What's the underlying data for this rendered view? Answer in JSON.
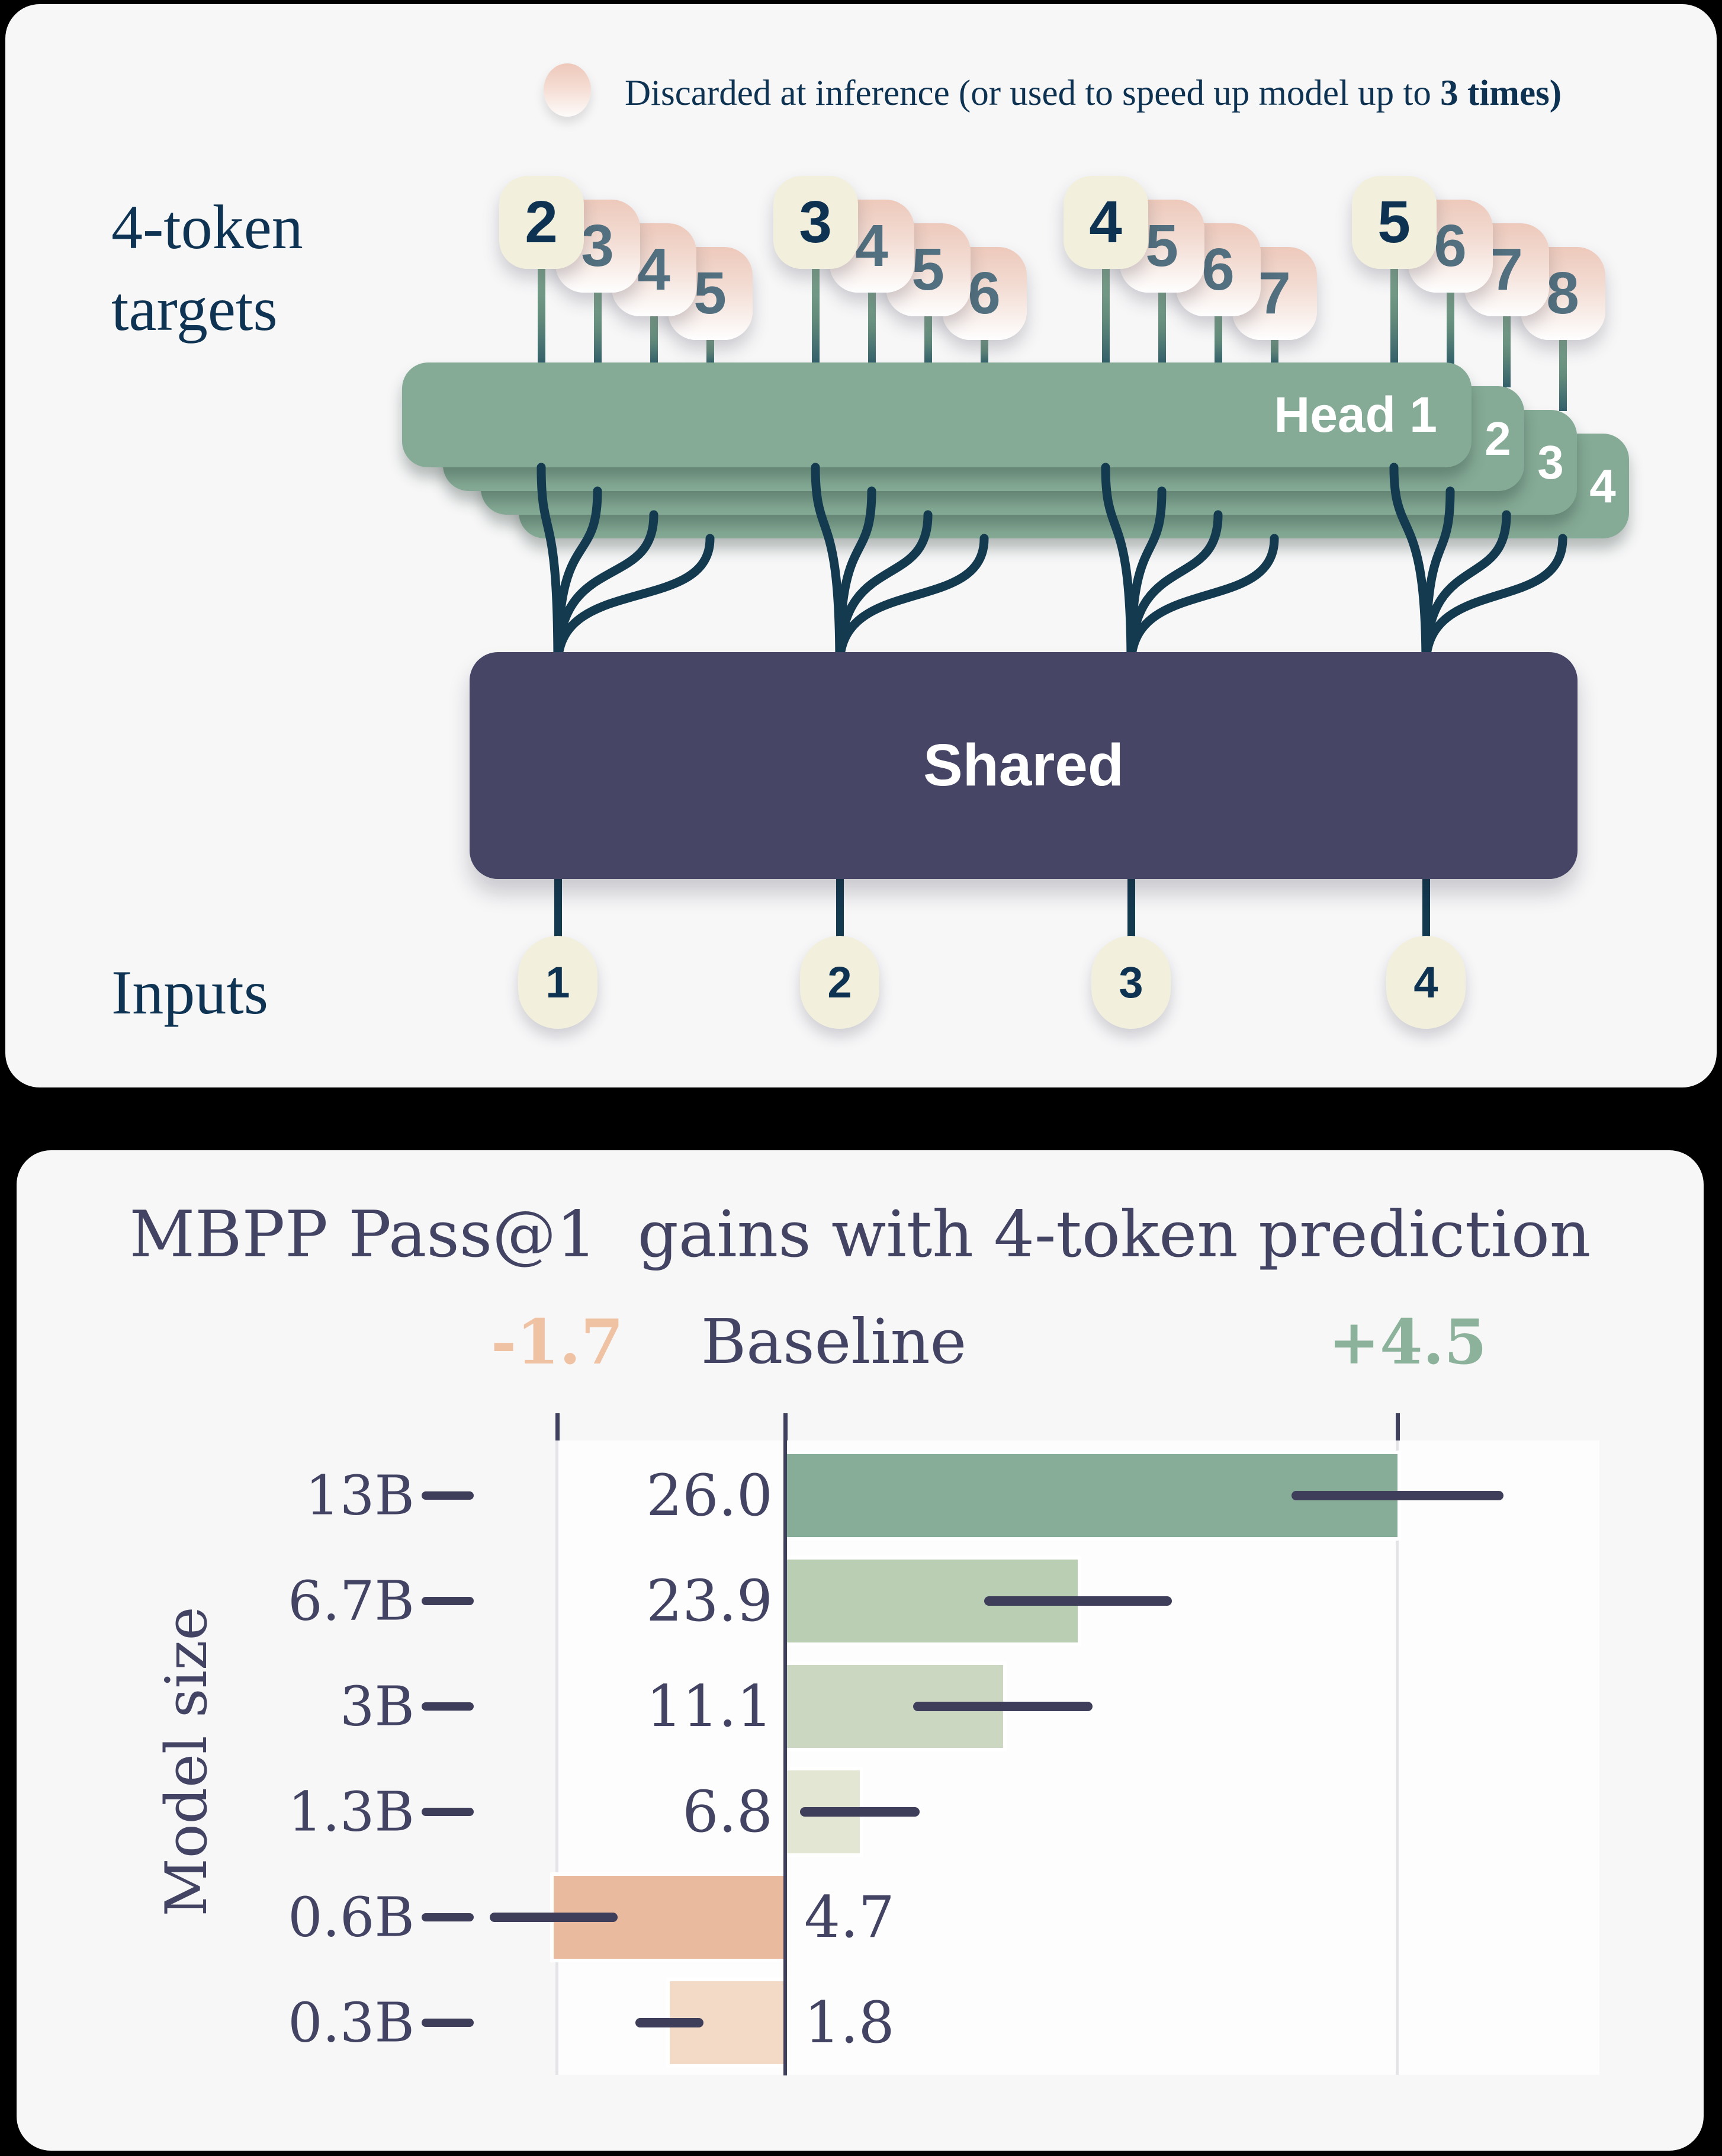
{
  "diagram": {
    "legend": {
      "prefix": "Discarded at inference (or used to speed up model up to ",
      "bold": "3 times)"
    },
    "targets_label_line1": "4-token",
    "targets_label_line2": "targets",
    "inputs_label": "Inputs",
    "shared_label": "Shared",
    "head_labels": [
      "Head 1",
      "2",
      "3",
      "4"
    ],
    "token_groups": [
      [
        "2",
        "3",
        "4",
        "5"
      ],
      [
        "3",
        "4",
        "5",
        "6"
      ],
      [
        "4",
        "5",
        "6",
        "7"
      ],
      [
        "5",
        "6",
        "7",
        "8"
      ]
    ],
    "input_tokens": [
      "1",
      "2",
      "3",
      "4"
    ]
  },
  "chart_data": {
    "type": "bar",
    "orientation": "horizontal",
    "title": "MBPP Pass@1  gains with 4-token prediction",
    "ylabel": "Model size",
    "xlabel": "",
    "header": {
      "min": "-1.7",
      "center": "Baseline",
      "max": "+4.5"
    },
    "categories": [
      "13B",
      "6.7B",
      "3B",
      "1.3B",
      "0.6B",
      "0.3B"
    ],
    "scores": [
      "26.0",
      "23.9",
      "11.1",
      "6.8",
      "4.7",
      "1.8"
    ],
    "gains": [
      4.5,
      2.15,
      1.6,
      0.55,
      -1.7,
      -0.85
    ],
    "errors": [
      0.78,
      0.69,
      0.66,
      0.44,
      0.47,
      0.25
    ],
    "xlim": [
      -1.7,
      4.5
    ],
    "grid": "vertical lines at xlim only",
    "legend_position": "none",
    "bar_colors": [
      "#87ac97",
      "#b9ceb3",
      "#cbd7c1",
      "#e3e6d2",
      "#eaba9e",
      "#f3dac7"
    ],
    "accent_colors": {
      "negative_label": "#efc2a4",
      "positive_label": "#8cb29b",
      "text": "#434363",
      "error_bar": "#3e3e5b",
      "gridline": "#e4e4e8",
      "head_green": "#85ab96",
      "shared_navy": "#464565",
      "token_cream": "#f2efdc",
      "token_pink": "#edc9bb"
    }
  }
}
